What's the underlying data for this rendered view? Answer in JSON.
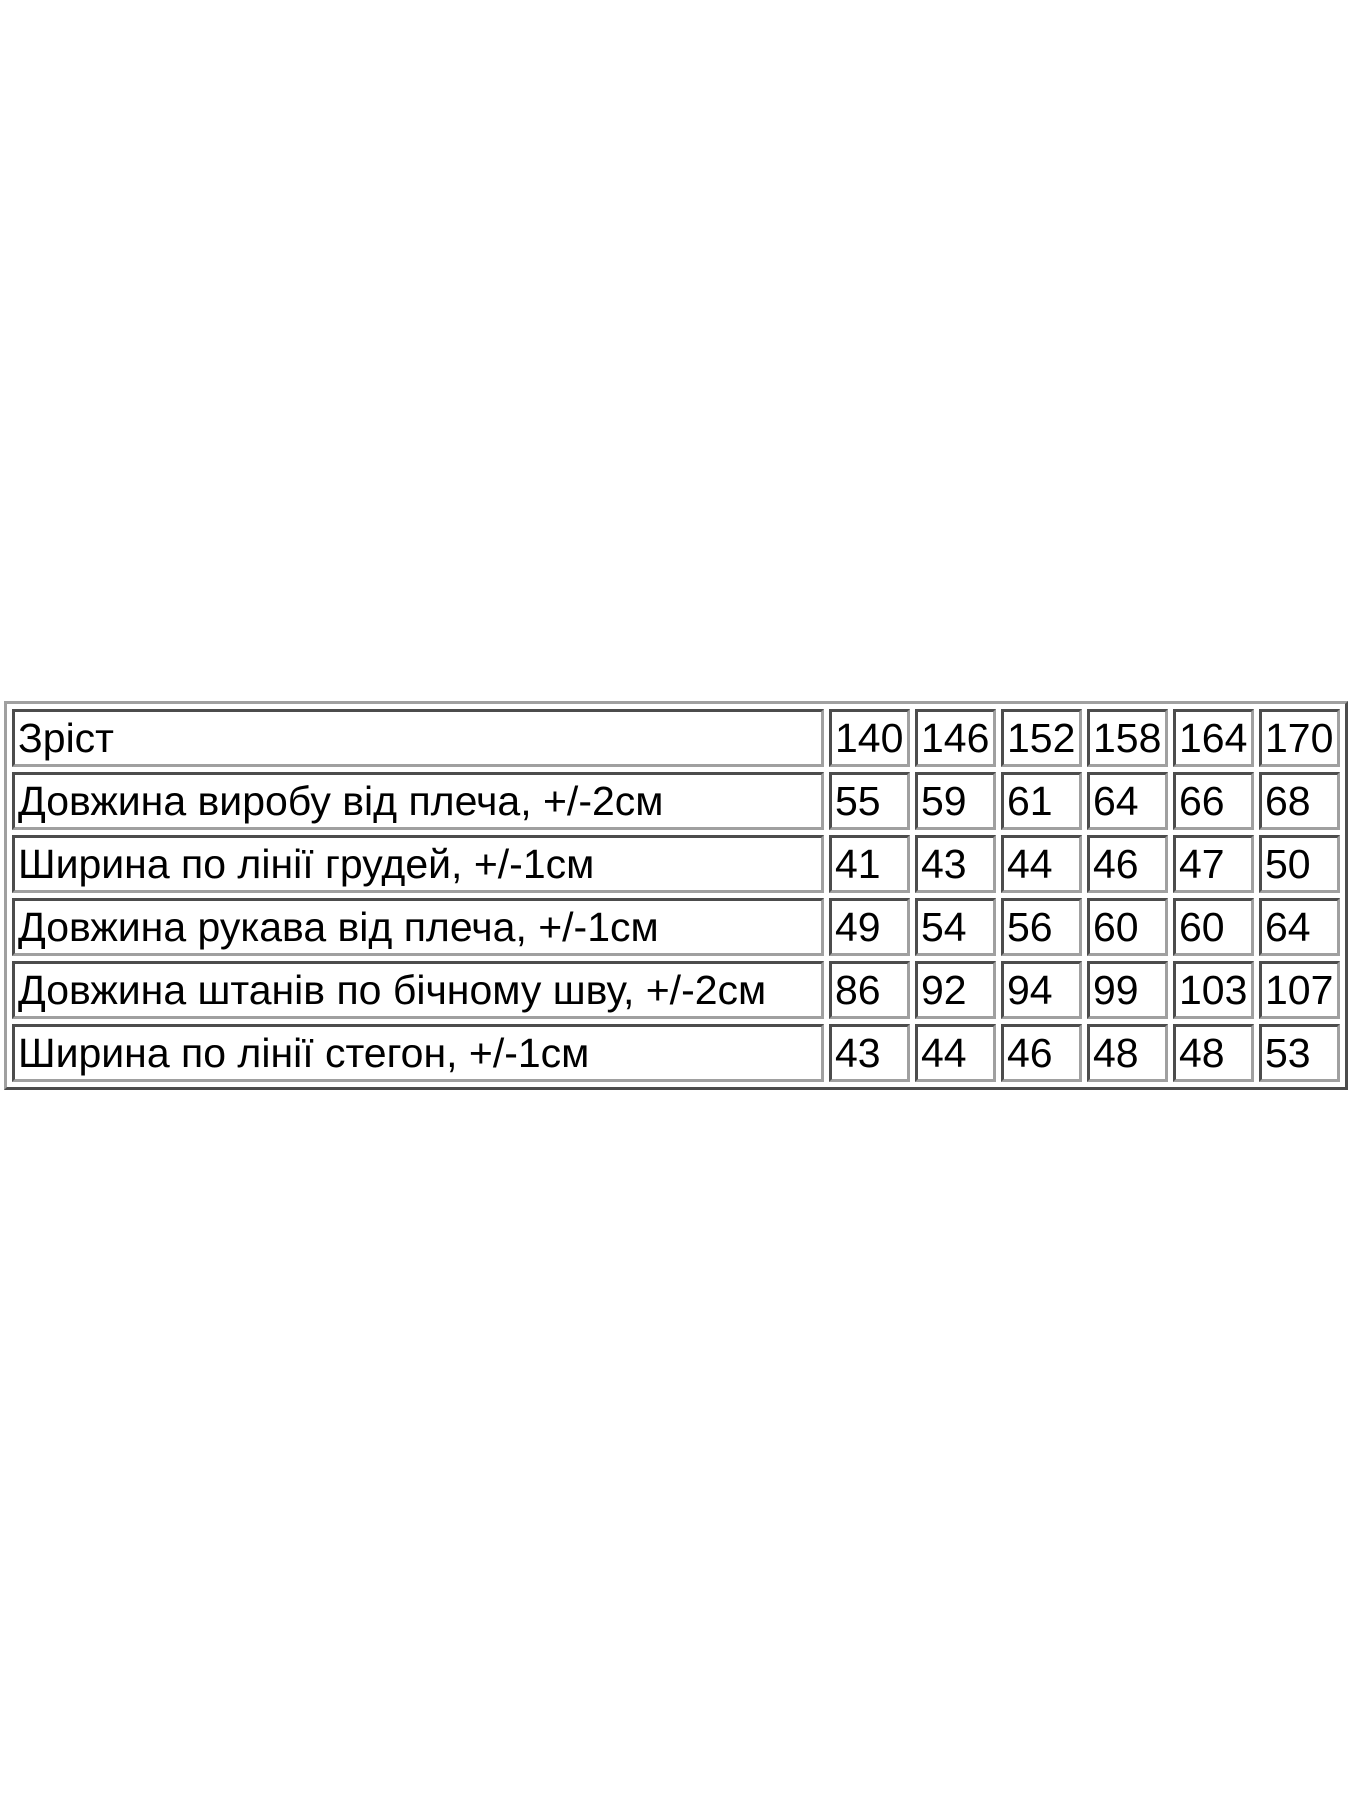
{
  "size_table": {
    "rows": [
      {
        "label": "Зріст",
        "values": [
          "140",
          "146",
          "152",
          "158",
          "164",
          "170"
        ]
      },
      {
        "label": "Довжина виробу від плеча, +/-2см",
        "values": [
          "55",
          "59",
          "61",
          "64",
          "66",
          "68"
        ]
      },
      {
        "label": "Ширина по лінії грудей, +/-1см",
        "values": [
          "41",
          "43",
          "44",
          "46",
          "47",
          "50"
        ]
      },
      {
        "label": "Довжина рукава від плеча, +/-1см",
        "values": [
          "49",
          "54",
          "56",
          "60",
          "60",
          "64"
        ]
      },
      {
        "label": "Довжина штанів по бічному шву, +/-2см",
        "values": [
          "86",
          "92",
          "94",
          "99",
          "103",
          "107"
        ]
      },
      {
        "label": "Ширина по лінії стегон, +/-1см",
        "values": [
          "43",
          "44",
          "46",
          "48",
          "48",
          "53"
        ]
      }
    ]
  }
}
